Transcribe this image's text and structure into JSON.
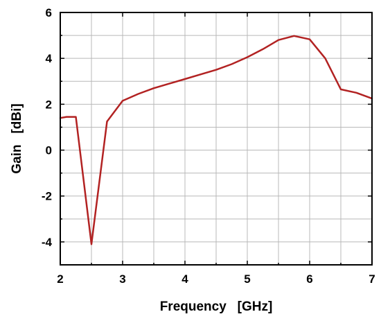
{
  "chart_data": {
    "type": "line",
    "xlabel": "Frequency   [GHz]",
    "ylabel": "Gain   [dBi]",
    "xlim": [
      2,
      7
    ],
    "ylim": [
      -5,
      6
    ],
    "x_ticks": [
      2,
      3,
      4,
      5,
      6,
      7
    ],
    "y_ticks": [
      -4,
      -2,
      0,
      2,
      4,
      6
    ],
    "grid": true,
    "series": [
      {
        "color": "#b22222",
        "x": [
          2.0,
          2.1,
          2.25,
          2.5,
          2.75,
          3.0,
          3.25,
          3.5,
          3.75,
          4.0,
          4.25,
          4.5,
          4.75,
          5.0,
          5.25,
          5.5,
          5.75,
          6.0,
          6.25,
          6.5,
          6.75,
          7.0
        ],
        "y": [
          1.4,
          1.45,
          1.45,
          -4.1,
          1.25,
          2.15,
          2.45,
          2.7,
          2.9,
          3.1,
          3.3,
          3.5,
          3.75,
          4.05,
          4.4,
          4.8,
          4.98,
          4.83,
          4.0,
          2.65,
          2.5,
          2.25
        ]
      }
    ]
  }
}
